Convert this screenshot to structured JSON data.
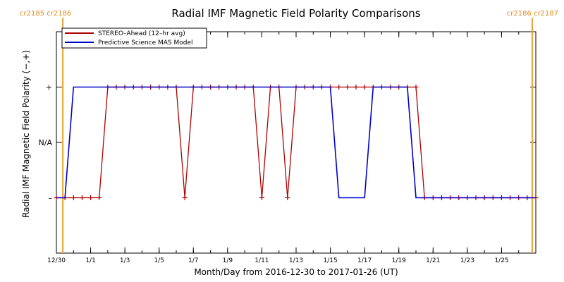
{
  "chart_data": {
    "type": "line",
    "title": "Radial IMF Magnetic Field Polarity Comparisons",
    "xlabel": "Month/Day from 2016-12-30 to 2017-01-26 (UT)",
    "ylabel": "Radial IMF Magnetic Field Polarity (−,+)",
    "x_range": [
      "2016-12-30T00:00",
      "2017-01-27T00:00"
    ],
    "y_range": [
      -2,
      2
    ],
    "x_ticks": [
      {
        "date": "2016-12-30",
        "label": "12/30"
      },
      {
        "date": "2017-01-01",
        "label": "1/1"
      },
      {
        "date": "2017-01-03",
        "label": "1/3"
      },
      {
        "date": "2017-01-05",
        "label": "1/5"
      },
      {
        "date": "2017-01-07",
        "label": "1/7"
      },
      {
        "date": "2017-01-09",
        "label": "1/9"
      },
      {
        "date": "2017-01-11",
        "label": "1/11"
      },
      {
        "date": "2017-01-13",
        "label": "1/13"
      },
      {
        "date": "2017-01-15",
        "label": "1/15"
      },
      {
        "date": "2017-01-17",
        "label": "1/17"
      },
      {
        "date": "2017-01-19",
        "label": "1/19"
      },
      {
        "date": "2017-01-21",
        "label": "1/21"
      },
      {
        "date": "2017-01-23",
        "label": "1/23"
      },
      {
        "date": "2017-01-25",
        "label": "1/25"
      }
    ],
    "y_ticks": [
      {
        "value": 1,
        "label": "+"
      },
      {
        "value": 0,
        "label": "N/A"
      },
      {
        "value": -1,
        "label": "–"
      }
    ],
    "carrington_markers": [
      {
        "date": "2016-12-30T09:00",
        "label": "cr2185 cr2186"
      },
      {
        "date": "2017-01-26T19:00",
        "label": "cr2186 cr2187"
      }
    ],
    "legend": {
      "placement": "top-left"
    },
    "series": [
      {
        "name": "STEREO–Ahead (12–hr avg)",
        "color": "#b00000",
        "markers": true,
        "points": [
          [
            "2016-12-30T00:00",
            -1
          ],
          [
            "2016-12-30T12:00",
            -1
          ],
          [
            "2016-12-31T00:00",
            -1
          ],
          [
            "2016-12-31T12:00",
            -1
          ],
          [
            "2017-01-01T00:00",
            -1
          ],
          [
            "2017-01-01T12:00",
            -1
          ],
          [
            "2017-01-02T00:00",
            1
          ],
          [
            "2017-01-02T12:00",
            1
          ],
          [
            "2017-01-03T00:00",
            1
          ],
          [
            "2017-01-03T12:00",
            1
          ],
          [
            "2017-01-04T00:00",
            1
          ],
          [
            "2017-01-04T12:00",
            1
          ],
          [
            "2017-01-05T00:00",
            1
          ],
          [
            "2017-01-05T12:00",
            1
          ],
          [
            "2017-01-06T00:00",
            1
          ],
          [
            "2017-01-06T12:00",
            -1
          ],
          [
            "2017-01-07T00:00",
            1
          ],
          [
            "2017-01-07T12:00",
            1
          ],
          [
            "2017-01-08T00:00",
            1
          ],
          [
            "2017-01-08T12:00",
            1
          ],
          [
            "2017-01-09T00:00",
            1
          ],
          [
            "2017-01-09T12:00",
            1
          ],
          [
            "2017-01-10T00:00",
            1
          ],
          [
            "2017-01-10T12:00",
            1
          ],
          [
            "2017-01-11T00:00",
            -1
          ],
          [
            "2017-01-11T12:00",
            1
          ],
          [
            "2017-01-12T00:00",
            1
          ],
          [
            "2017-01-12T12:00",
            -1
          ],
          [
            "2017-01-13T00:00",
            1
          ],
          [
            "2017-01-13T12:00",
            1
          ],
          [
            "2017-01-14T00:00",
            1
          ],
          [
            "2017-01-14T12:00",
            1
          ],
          [
            "2017-01-15T00:00",
            1
          ],
          [
            "2017-01-15T12:00",
            1
          ],
          [
            "2017-01-16T00:00",
            1
          ],
          [
            "2017-01-16T12:00",
            1
          ],
          [
            "2017-01-17T00:00",
            1
          ],
          [
            "2017-01-17T12:00",
            1
          ],
          [
            "2017-01-18T00:00",
            1
          ],
          [
            "2017-01-18T12:00",
            1
          ],
          [
            "2017-01-19T00:00",
            1
          ],
          [
            "2017-01-19T12:00",
            1
          ],
          [
            "2017-01-20T00:00",
            1
          ],
          [
            "2017-01-20T12:00",
            -1
          ],
          [
            "2017-01-21T00:00",
            -1
          ],
          [
            "2017-01-21T12:00",
            -1
          ],
          [
            "2017-01-22T00:00",
            -1
          ],
          [
            "2017-01-22T12:00",
            -1
          ],
          [
            "2017-01-23T00:00",
            -1
          ],
          [
            "2017-01-23T12:00",
            -1
          ],
          [
            "2017-01-24T00:00",
            -1
          ],
          [
            "2017-01-24T12:00",
            -1
          ],
          [
            "2017-01-25T00:00",
            -1
          ],
          [
            "2017-01-25T12:00",
            -1
          ],
          [
            "2017-01-26T00:00",
            -1
          ],
          [
            "2017-01-26T12:00",
            -1
          ],
          [
            "2017-01-27T00:00",
            -1
          ]
        ]
      },
      {
        "name": "Predictive Science MAS Model",
        "color": "#0000cc",
        "markers": false,
        "points": [
          [
            "2016-12-30T00:00",
            -1
          ],
          [
            "2016-12-30T12:00",
            -1
          ],
          [
            "2016-12-31T00:00",
            1
          ],
          [
            "2017-01-15T00:00",
            1
          ],
          [
            "2017-01-15T12:00",
            -1
          ],
          [
            "2017-01-17T00:00",
            -1
          ],
          [
            "2017-01-17T12:00",
            1
          ],
          [
            "2017-01-19T12:00",
            1
          ],
          [
            "2017-01-20T00:00",
            -1
          ],
          [
            "2017-01-27T00:00",
            -1
          ]
        ]
      }
    ]
  }
}
